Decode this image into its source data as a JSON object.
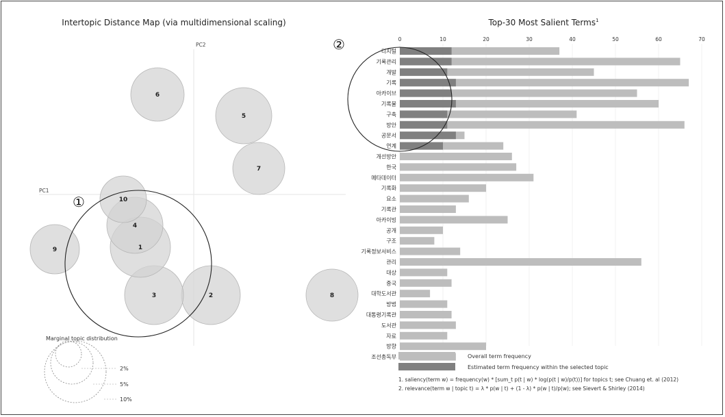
{
  "chart_data": [
    {
      "type": "scatter",
      "title": "Intertopic Distance Map (via multidimensional scaling)",
      "xlabel": "PC1",
      "ylabel": "PC2",
      "topics": [
        {
          "id": "1",
          "label": "1"
        },
        {
          "id": "2",
          "label": "2"
        },
        {
          "id": "3",
          "label": "3"
        },
        {
          "id": "4",
          "label": "4"
        },
        {
          "id": "5",
          "label": "5"
        },
        {
          "id": "6",
          "label": "6"
        },
        {
          "id": "7",
          "label": "7"
        },
        {
          "id": "8",
          "label": "8"
        },
        {
          "id": "9",
          "label": "9"
        },
        {
          "id": "10",
          "label": "10"
        }
      ],
      "legend": {
        "title": "Marginal topic distribution",
        "levels": [
          "2%",
          "5%",
          "10%"
        ]
      }
    },
    {
      "type": "bar",
      "title": "Top-30 Most Salient Terms",
      "title_sup": "1",
      "xlim": [
        0,
        70
      ],
      "xticks": [
        "0",
        "10",
        "20",
        "30",
        "40",
        "50",
        "60",
        "70"
      ],
      "categories": [
        "디지털",
        "기록관리",
        "개발",
        "기록",
        "아카이브",
        "기록물",
        "구축",
        "방안",
        "공문서",
        "연계",
        "개선방안",
        "한국",
        "메타데이터",
        "기록화",
        "요소",
        "기록관",
        "아카이빙",
        "공개",
        "구조",
        "기록정보서비스",
        "관리",
        "대상",
        "중국",
        "대학도서관",
        "방법",
        "대통령기록관",
        "도서관",
        "자료",
        "방향",
        "조선총독부"
      ],
      "series": [
        {
          "name": "Overall term frequency",
          "values": [
            37,
            65,
            45,
            67,
            55,
            60,
            41,
            66,
            15,
            24,
            26,
            27,
            31,
            20,
            16,
            13,
            25,
            10,
            8,
            14,
            56,
            11,
            12,
            7,
            11,
            12,
            13,
            11,
            20,
            13
          ]
        },
        {
          "name": "Estimated term frequency within the selected topic",
          "values": [
            12,
            12,
            11,
            13,
            12,
            13,
            11,
            11,
            13,
            10,
            0,
            0,
            0,
            0,
            0,
            0,
            0,
            0,
            0,
            0,
            0,
            0,
            0,
            0,
            0,
            0,
            0,
            0,
            0,
            0
          ]
        }
      ],
      "footnotes": [
        "1. saliency(term w) = frequency(w) * [sum_t p(t | w) * log(p(t | w)/p(t))] for topics t; see Chuang et. al (2012)",
        "2. relevance(term w | topic t) = λ * p(w | t) + (1 - λ) * p(w | t)/p(w); see Sievert & Shirley (2014)"
      ]
    }
  ],
  "markers": {
    "left": "①",
    "right": "②"
  },
  "colors": {
    "bar_overall": "#bdbdbd",
    "bar_topic": "#808080",
    "bubble_fill": "#d3d3d3",
    "bubble_stroke": "#b5b5b5",
    "selected_stroke": "#222222"
  }
}
